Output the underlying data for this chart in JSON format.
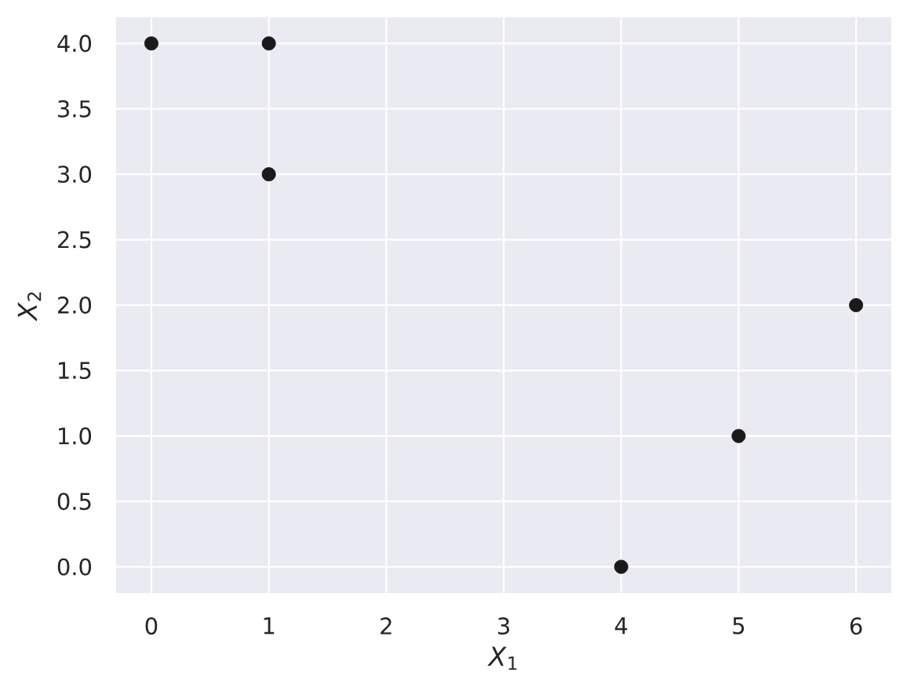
{
  "chart_data": {
    "type": "scatter",
    "xlabel": "*X*$_{1}$",
    "ylabel": "*X*$_{2}$",
    "x": [
      0,
      1,
      1,
      4,
      5,
      6
    ],
    "values": [
      4,
      4,
      3,
      0,
      1,
      2
    ],
    "color": "#1a1a1a",
    "marker": "circle",
    "xlim": [
      -0.3,
      6.3
    ],
    "ylim": [
      -0.2,
      4.2
    ],
    "xticks": [
      0,
      1,
      2,
      3,
      4,
      5,
      6
    ],
    "yticks": [
      {
        "value": 0,
        "label": "0.0"
      },
      {
        "value": 0.5,
        "label": "0.5"
      },
      {
        "value": 1,
        "label": "1.0"
      },
      {
        "value": 1.5,
        "label": "1.5"
      },
      {
        "value": 2,
        "label": "2.0"
      },
      {
        "value": 2.5,
        "label": "2.5"
      },
      {
        "value": 3,
        "label": "3.0"
      },
      {
        "value": 3.5,
        "label": "3.5"
      },
      {
        "value": 4,
        "label": "4.0"
      }
    ],
    "grid": true
  }
}
